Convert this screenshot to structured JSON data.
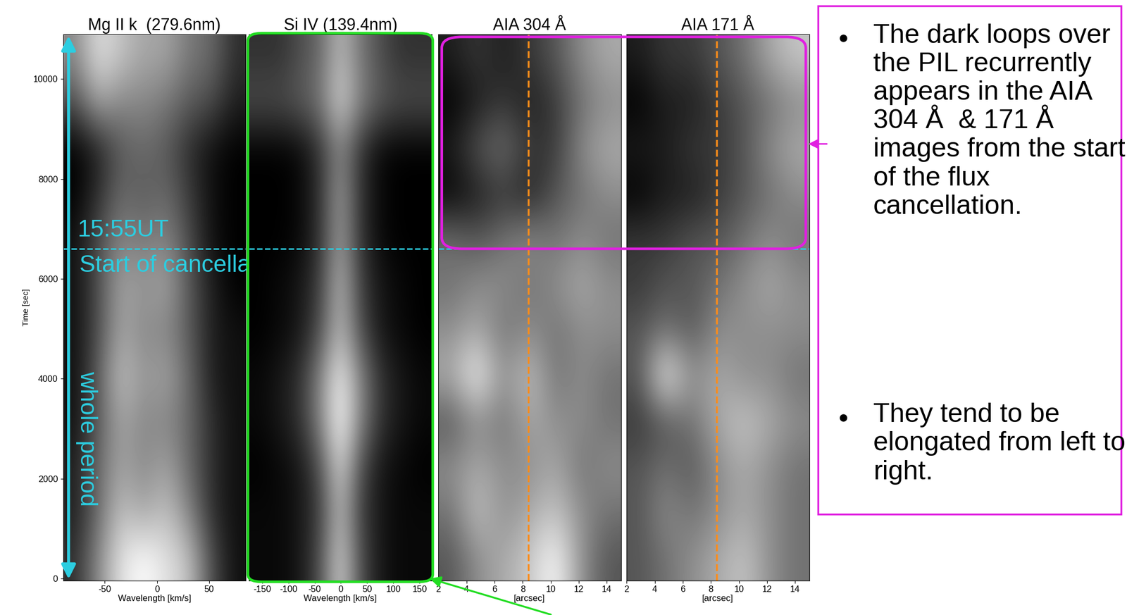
{
  "chart_data": [
    {
      "type": "heatmap",
      "title": "Mg II k  (279.6nm)",
      "xlabel": "Wavelength [km/s]",
      "ylabel": "Time [sec]",
      "xlim": [
        -90,
        85
      ],
      "ylim": [
        -40,
        10890
      ],
      "xticks": [
        -50,
        0,
        50
      ],
      "yticks": [
        0,
        2000,
        4000,
        6000,
        8000,
        10000
      ],
      "tick_labels": true,
      "cells": [
        [
          0.2,
          0.5,
          0.8,
          0.9,
          0.8,
          0.7,
          0.3,
          0.1
        ],
        [
          0.15,
          0.4,
          0.7,
          0.6,
          0.7,
          0.5,
          0.2,
          0.1
        ],
        [
          0.15,
          0.4,
          0.6,
          0.5,
          0.6,
          0.4,
          0.2,
          0.1
        ],
        [
          0.1,
          0.35,
          0.6,
          0.5,
          0.5,
          0.4,
          0.2,
          0.1
        ],
        [
          0.1,
          0.35,
          0.7,
          0.55,
          0.6,
          0.4,
          0.15,
          0.1
        ],
        [
          0.1,
          0.3,
          0.6,
          0.5,
          0.5,
          0.35,
          0.15,
          0.1
        ],
        [
          0.1,
          0.3,
          0.6,
          0.55,
          0.6,
          0.35,
          0.15,
          0.05
        ],
        [
          0.1,
          0.3,
          0.5,
          0.45,
          0.5,
          0.3,
          0.1,
          0.05
        ],
        [
          0.05,
          0.2,
          0.4,
          0.35,
          0.4,
          0.25,
          0.1,
          0.05
        ],
        [
          0.05,
          0.15,
          0.35,
          0.4,
          0.35,
          0.2,
          0.1,
          0.05
        ],
        [
          0.3,
          0.6,
          0.5,
          0.5,
          0.45,
          0.35,
          0.3,
          0.15
        ],
        [
          0.5,
          0.8,
          0.7,
          0.6,
          0.6,
          0.45,
          0.4,
          0.2
        ]
      ]
    },
    {
      "type": "heatmap",
      "title": "Si IV (139.4nm)",
      "xlabel": "Wavelength [km/s]",
      "xlim": [
        -175,
        173
      ],
      "ylim": [
        -40,
        10890
      ],
      "xticks": [
        -150,
        -100,
        -50,
        0,
        50,
        100,
        150
      ],
      "tick_labels": "x",
      "cells": [
        [
          0.05,
          0.05,
          0.1,
          0.3,
          0.8,
          0.3,
          0.1,
          0.05,
          0.05
        ],
        [
          0.05,
          0.05,
          0.1,
          0.25,
          0.7,
          0.25,
          0.1,
          0.05,
          0.05
        ],
        [
          0.02,
          0.05,
          0.1,
          0.3,
          0.8,
          0.3,
          0.1,
          0.05,
          0.02
        ],
        [
          0.05,
          0.1,
          0.2,
          0.5,
          0.95,
          0.5,
          0.2,
          0.1,
          0.05
        ],
        [
          0.05,
          0.1,
          0.2,
          0.5,
          0.9,
          0.5,
          0.2,
          0.1,
          0.05
        ],
        [
          0.02,
          0.05,
          0.1,
          0.3,
          0.7,
          0.3,
          0.1,
          0.05,
          0.02
        ],
        [
          0.02,
          0.05,
          0.1,
          0.25,
          0.7,
          0.25,
          0.1,
          0.05,
          0.02
        ],
        [
          0.02,
          0.02,
          0.05,
          0.2,
          0.6,
          0.2,
          0.05,
          0.02,
          0.02
        ],
        [
          0.02,
          0.02,
          0.05,
          0.2,
          0.6,
          0.2,
          0.05,
          0.02,
          0.02
        ],
        [
          0.02,
          0.02,
          0.05,
          0.2,
          0.5,
          0.2,
          0.05,
          0.02,
          0.02
        ],
        [
          0.3,
          0.3,
          0.35,
          0.45,
          0.8,
          0.5,
          0.35,
          0.3,
          0.3
        ],
        [
          0.2,
          0.2,
          0.3,
          0.4,
          0.7,
          0.45,
          0.3,
          0.2,
          0.2
        ]
      ]
    },
    {
      "type": "heatmap",
      "title": "AIA 304 Å",
      "xlabel": "[arcsec]",
      "xlim": [
        2,
        15
      ],
      "ylim": [
        -40,
        10890
      ],
      "xticks": [
        2,
        4,
        6,
        8,
        10,
        12,
        14
      ],
      "tick_labels": "x",
      "pil_x": 8.4,
      "cells": [
        [
          0.4,
          0.5,
          0.55,
          0.6,
          0.7,
          0.5,
          0.4
        ],
        [
          0.45,
          0.6,
          0.5,
          0.55,
          0.6,
          0.5,
          0.45
        ],
        [
          0.5,
          0.55,
          0.5,
          0.5,
          0.55,
          0.45,
          0.5
        ],
        [
          0.4,
          0.5,
          0.45,
          0.55,
          0.5,
          0.5,
          0.45
        ],
        [
          0.55,
          0.7,
          0.5,
          0.6,
          0.45,
          0.5,
          0.45
        ],
        [
          0.5,
          0.55,
          0.45,
          0.5,
          0.45,
          0.5,
          0.5
        ],
        [
          0.45,
          0.5,
          0.5,
          0.45,
          0.5,
          0.55,
          0.5
        ],
        [
          0.45,
          0.4,
          0.45,
          0.5,
          0.45,
          0.5,
          0.45
        ],
        [
          0.25,
          0.3,
          0.35,
          0.3,
          0.4,
          0.45,
          0.5
        ],
        [
          0.3,
          0.4,
          0.45,
          0.35,
          0.35,
          0.5,
          0.55
        ],
        [
          0.25,
          0.3,
          0.35,
          0.3,
          0.35,
          0.45,
          0.5
        ],
        [
          0.3,
          0.35,
          0.3,
          0.35,
          0.4,
          0.5,
          0.55
        ]
      ]
    },
    {
      "type": "heatmap",
      "title": "AIA 171 Å",
      "xlabel": "[arcsec]",
      "xlim": [
        2,
        15
      ],
      "ylim": [
        -40,
        10890
      ],
      "xticks": [
        2,
        4,
        6,
        8,
        10,
        12,
        14
      ],
      "tick_labels": "x",
      "pil_x": 8.4,
      "cells": [
        [
          0.35,
          0.4,
          0.45,
          0.5,
          0.55,
          0.45,
          0.4
        ],
        [
          0.35,
          0.45,
          0.4,
          0.45,
          0.5,
          0.45,
          0.4
        ],
        [
          0.35,
          0.4,
          0.35,
          0.45,
          0.5,
          0.45,
          0.4
        ],
        [
          0.3,
          0.35,
          0.4,
          0.5,
          0.55,
          0.5,
          0.45
        ],
        [
          0.35,
          0.65,
          0.45,
          0.5,
          0.45,
          0.45,
          0.4
        ],
        [
          0.35,
          0.4,
          0.35,
          0.45,
          0.45,
          0.45,
          0.45
        ],
        [
          0.3,
          0.35,
          0.35,
          0.4,
          0.45,
          0.5,
          0.45
        ],
        [
          0.3,
          0.3,
          0.35,
          0.35,
          0.4,
          0.45,
          0.4
        ],
        [
          0.2,
          0.25,
          0.25,
          0.3,
          0.35,
          0.4,
          0.45
        ],
        [
          0.25,
          0.25,
          0.3,
          0.3,
          0.35,
          0.45,
          0.5
        ],
        [
          0.2,
          0.25,
          0.25,
          0.3,
          0.35,
          0.4,
          0.45
        ],
        [
          0.25,
          0.3,
          0.3,
          0.35,
          0.4,
          0.5,
          0.55
        ]
      ]
    }
  ],
  "cancellation": {
    "time": 6600,
    "labels": [
      "15:55UT",
      "Start of cancellation"
    ]
  },
  "period_label": "whole period",
  "note_bullets": [
    "The dark loops over the PIL recurrently appears in the AIA 304 Å  & 171 Å images from the start of the flux cancellation.",
    "They tend to be elongated from left to right."
  ]
}
